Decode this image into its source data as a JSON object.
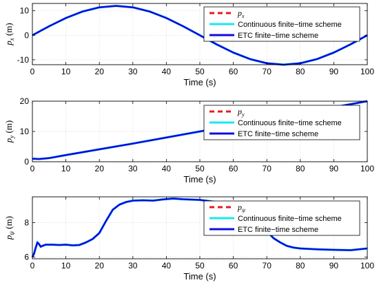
{
  "colors": {
    "reference": "#e41a1c",
    "continuous": "#19e6f2",
    "etc": "#0d0de0"
  },
  "chart_data": [
    {
      "type": "line",
      "xlabel": "Time (s)",
      "ylabel": {
        "base": "p",
        "sub": "x",
        "unit": " (m)"
      },
      "xlim": [
        0,
        100
      ],
      "ylim": [
        -12,
        13
      ],
      "xticks": [
        0,
        10,
        20,
        30,
        40,
        50,
        60,
        70,
        80,
        90,
        100
      ],
      "yticks": [
        -10,
        0,
        10
      ],
      "grid": true,
      "legend_position": "top-right",
      "legend": [
        {
          "base": "p",
          "sub": "x",
          "style": "dashed",
          "color_key": "reference"
        },
        {
          "label": "Continuous finite−time scheme",
          "style": "solid",
          "color_key": "continuous"
        },
        {
          "label": "ETC finite−time scheme",
          "style": "solid",
          "color_key": "etc"
        }
      ],
      "series": [
        {
          "x": [
            0,
            5,
            10,
            15,
            20,
            25,
            30,
            35,
            40,
            45,
            50,
            55,
            60,
            65,
            70,
            75,
            80,
            85,
            90,
            95,
            100
          ],
          "values": [
            0,
            3.7,
            7.05,
            9.71,
            11.41,
            12,
            11.41,
            9.71,
            7.05,
            3.7,
            0,
            -3.7,
            -7.05,
            -9.71,
            -11.41,
            -12,
            -11.41,
            -9.71,
            -7.05,
            -3.7,
            0
          ]
        }
      ]
    },
    {
      "type": "line",
      "xlabel": "Time (s)",
      "ylabel": {
        "base": "p",
        "sub": "y",
        "unit": " (m)"
      },
      "xlim": [
        0,
        100
      ],
      "ylim": [
        0,
        20
      ],
      "xticks": [
        0,
        10,
        20,
        30,
        40,
        50,
        60,
        70,
        80,
        90,
        100
      ],
      "yticks": [
        0,
        10,
        20
      ],
      "grid": true,
      "legend_position": "top-right",
      "legend": [
        {
          "base": "p",
          "sub": "y",
          "style": "dashed",
          "color_key": "reference"
        },
        {
          "label": "Continuous finite−time scheme",
          "style": "solid",
          "color_key": "continuous"
        },
        {
          "label": "ETC finite−time scheme",
          "style": "solid",
          "color_key": "etc"
        }
      ],
      "series": [
        {
          "x": [
            0,
            2,
            5,
            10,
            20,
            30,
            40,
            50,
            60,
            70,
            80,
            90,
            100
          ],
          "values": [
            1.0,
            0.9,
            1.2,
            2.2,
            4.1,
            6.0,
            8.0,
            10.0,
            12.0,
            14.0,
            16.0,
            18.0,
            20.0
          ]
        }
      ]
    },
    {
      "type": "line",
      "xlabel": "Time (s)",
      "ylabel": {
        "base": "p",
        "sub": "ψ",
        "unit": " (m)"
      },
      "xlim": [
        0,
        100
      ],
      "ylim": [
        5.9,
        9.5
      ],
      "xticks": [
        0,
        10,
        20,
        30,
        40,
        50,
        60,
        70,
        80,
        90,
        100
      ],
      "yticks": [
        6,
        8
      ],
      "grid": true,
      "legend_position": "top-right",
      "legend": [
        {
          "base": "p",
          "sub": "ψ",
          "style": "dashed",
          "color_key": "reference"
        },
        {
          "label": "Continuous finite−time scheme",
          "style": "solid",
          "color_key": "continuous"
        },
        {
          "label": "ETC finite−time scheme",
          "style": "solid",
          "color_key": "etc"
        }
      ],
      "series": [
        {
          "x": [
            0,
            0.5,
            1,
            1.5,
            2,
            2.5,
            3,
            4,
            6,
            8,
            10,
            12,
            14,
            16,
            18,
            20,
            22,
            24,
            26,
            28,
            30,
            33,
            36,
            39,
            42,
            45,
            50,
            55,
            60,
            65,
            70,
            72,
            74,
            76,
            78,
            80,
            85,
            90,
            95,
            100
          ],
          "values": [
            6.0,
            6.2,
            6.55,
            6.85,
            6.75,
            6.6,
            6.65,
            6.72,
            6.72,
            6.7,
            6.72,
            6.68,
            6.7,
            6.85,
            7.05,
            7.4,
            8.1,
            8.75,
            9.05,
            9.2,
            9.28,
            9.3,
            9.28,
            9.35,
            9.4,
            9.36,
            9.32,
            9.2,
            9.05,
            8.4,
            7.5,
            7.1,
            6.85,
            6.65,
            6.55,
            6.5,
            6.45,
            6.42,
            6.4,
            6.5
          ]
        }
      ]
    }
  ]
}
